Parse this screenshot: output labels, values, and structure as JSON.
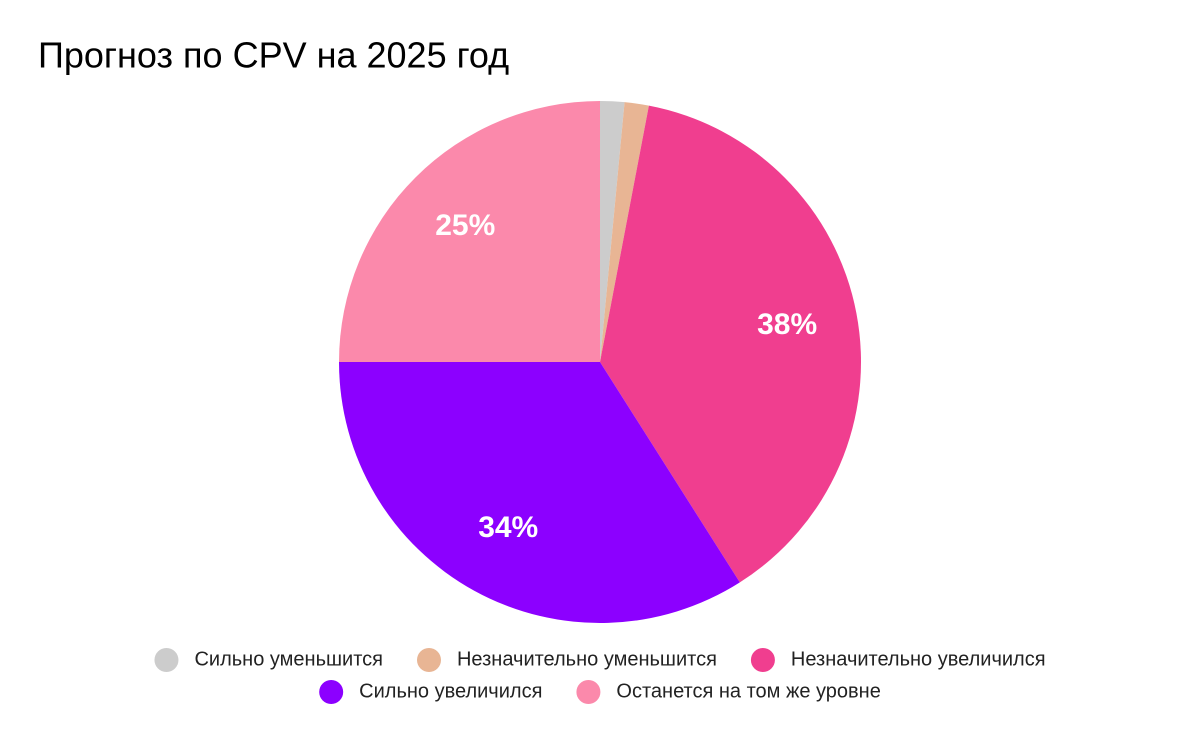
{
  "chart_data": {
    "type": "pie",
    "title": "Прогноз по CPV на 2025 год",
    "categories": [
      "Сильно уменьшится",
      "Незначительно уменьшится",
      "Незначительно увеличился",
      "Сильно увеличился",
      "Останется на том же уровне"
    ],
    "values": [
      1.5,
      1.5,
      38,
      34,
      25
    ],
    "value_labels": [
      null,
      null,
      "38%",
      "34%",
      "25%"
    ],
    "colors": [
      "#cccccc",
      "#e8b594",
      "#f03e8f",
      "#8c00ff",
      "#fb89ab"
    ],
    "legend": "bottom"
  }
}
